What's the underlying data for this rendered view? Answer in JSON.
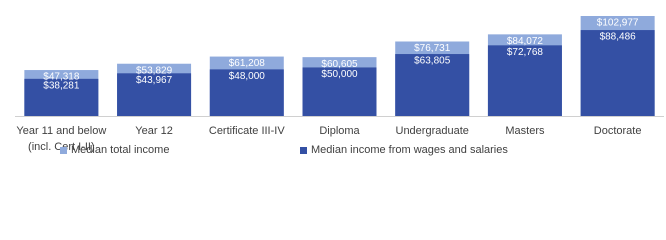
{
  "chart_data": {
    "type": "overlapped-bar",
    "categories": [
      "Year 11 and below (incl. Cert I-II)",
      "Year 12",
      "Certificate III-IV",
      "Diploma",
      "Undergraduate",
      "Masters",
      "Doctorate"
    ],
    "series": [
      {
        "name": "Median total income",
        "color": "#8faadc",
        "values": [
          47318,
          53829,
          61208,
          60605,
          76731,
          84072,
          102977
        ],
        "value_labels": [
          "$47,318",
          "$53,829",
          "$61,208",
          "$60,605",
          "$76,731",
          "$84,072",
          "$102,977"
        ]
      },
      {
        "name": "Median income from wages and salaries",
        "color": "#3450a4",
        "values": [
          38281,
          43967,
          48000,
          50000,
          63805,
          72768,
          88486
        ],
        "value_labels": [
          "$38,281",
          "$43,967",
          "$48,000",
          "$50,000",
          "$63,805",
          "$72,768",
          "$88,486"
        ]
      }
    ]
  }
}
